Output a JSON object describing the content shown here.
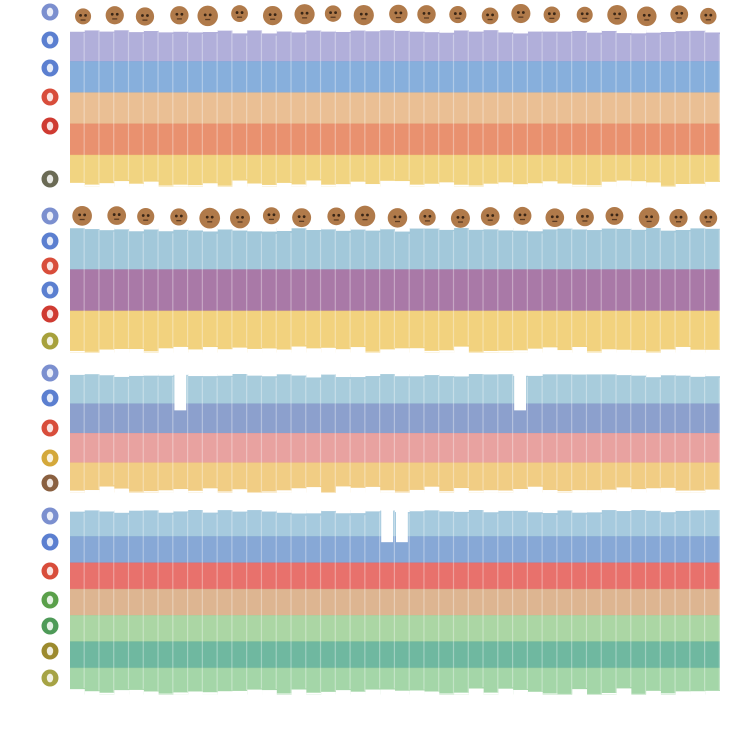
{
  "chart_data": [
    {
      "type": "bar",
      "stacked": true,
      "title": "",
      "xlabel": "",
      "ylabel": "",
      "n_columns": 44,
      "has_avatar_row": true,
      "legend_placement": "left",
      "series": [
        {
          "color": "#a8a6d6"
        },
        {
          "color": "#7aa6d8"
        },
        {
          "color": "#e8b888"
        },
        {
          "color": "#e7855f"
        },
        {
          "color": "#f0cf73"
        }
      ],
      "legend_icons": [
        {
          "color": "#7b8fcf"
        },
        {
          "color": "#5b7fd0"
        },
        {
          "color": "#5b7fd0"
        },
        {
          "color": "#d84d3b"
        },
        {
          "color": "#cf3b32"
        },
        {
          "color": "#6b6b55"
        }
      ]
    },
    {
      "type": "bar",
      "stacked": true,
      "title": "",
      "xlabel": "",
      "ylabel": "",
      "n_columns": 44,
      "has_avatar_row": true,
      "legend_placement": "left",
      "series": [
        {
          "color": "#98c2d6"
        },
        {
          "color": "#a06a9d"
        },
        {
          "color": "#f1cd70"
        }
      ],
      "legend_icons": [
        {
          "color": "#7b8fcf"
        },
        {
          "color": "#5b7fd0"
        },
        {
          "color": "#d84d3b"
        },
        {
          "color": "#5b7fd0"
        },
        {
          "color": "#cf3b32"
        },
        {
          "color": "#a7a13c"
        }
      ]
    },
    {
      "type": "bar",
      "stacked": true,
      "title": "",
      "xlabel": "",
      "ylabel": "",
      "n_columns": 44,
      "has_avatar_row": false,
      "legend_placement": "left",
      "series": [
        {
          "color": "#9fc6d8"
        },
        {
          "color": "#7f96c8"
        },
        {
          "color": "#e69896"
        },
        {
          "color": "#f0c877"
        }
      ],
      "legend_icons": [
        {
          "color": "#7b8fcf"
        },
        {
          "color": "#5b7fd0"
        },
        {
          "color": "#d84d3b"
        },
        {
          "color": "#d4a83a"
        },
        {
          "color": "#8a6040"
        }
      ]
    },
    {
      "type": "bar",
      "stacked": true,
      "title": "",
      "xlabel": "",
      "ylabel": "",
      "n_columns": 44,
      "has_avatar_row": false,
      "legend_placement": "left",
      "series": [
        {
          "color": "#9cc4da"
        },
        {
          "color": "#7a9fd2"
        },
        {
          "color": "#e6625c"
        },
        {
          "color": "#d9ad85"
        },
        {
          "color": "#a2d29a"
        },
        {
          "color": "#5fb096"
        },
        {
          "color": "#9ad19e"
        }
      ],
      "legend_icons": [
        {
          "color": "#7b8fcf"
        },
        {
          "color": "#5b7fd0"
        },
        {
          "color": "#d84d3b"
        },
        {
          "color": "#5aa04a"
        },
        {
          "color": "#4e9a58"
        },
        {
          "color": "#9c8a2e"
        },
        {
          "color": "#a6a344"
        }
      ]
    }
  ]
}
